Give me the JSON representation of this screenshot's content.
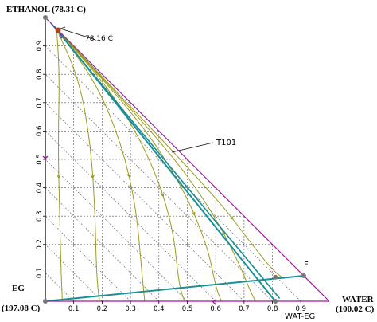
{
  "vertices": {
    "top": {
      "name": "ETHANOL (78.31 C)"
    },
    "left": {
      "name": "EG",
      "temp": "(197.08 C)"
    },
    "right": {
      "name": "WATER",
      "temp": "(100.02 C)"
    }
  },
  "axis_ticks": [
    "0.1",
    "0.2",
    "0.3",
    "0.4",
    "0.5",
    "0.6",
    "0.7",
    "0.8",
    "0.9"
  ],
  "annotations": {
    "azeotrope": "78.16 C",
    "boundary": "T101",
    "feed": "F",
    "binary": "WAT-EG"
  },
  "colors": {
    "frame": "#9a1a9a",
    "grid": "#555555",
    "residue_curve": "#9c9c1c",
    "process_line": "#1a8f96",
    "node": "#777777",
    "azeotrope_node": "#b0421a"
  },
  "chart_data": {
    "type": "ternary",
    "components": [
      "ETHANOL",
      "EG",
      "WATER"
    ],
    "boiling_points_C": {
      "ETHANOL": 78.31,
      "EG": 197.08,
      "WATER": 100.02
    },
    "azeotrope": {
      "label": "78.16 C",
      "water": 0.045,
      "ethanol": 0.955
    },
    "feed_point": {
      "label": "F",
      "water": 0.91,
      "ethanol": 0.09
    },
    "water_eg_product": {
      "label": "WAT-EG",
      "water": 0.81,
      "ethanol": 0.0
    },
    "distillation_boundary": {
      "label": "T101",
      "points": [
        {
          "water": 0.02,
          "ethanol": 0.98
        },
        {
          "water": 0.825,
          "ethanol": 0.01
        }
      ]
    },
    "process_lines": [
      [
        {
          "water": 0.0,
          "ethanol": 0.0
        },
        {
          "water": 0.91,
          "ethanol": 0.09
        }
      ],
      [
        {
          "water": 0.81,
          "ethanol": 0.0
        },
        {
          "water": 0.03,
          "ethanol": 0.97
        }
      ]
    ],
    "residue_curves": [
      [
        {
          "water": 0.04,
          "ethanol": 0.96
        },
        {
          "water": 0.05,
          "ethanol": 0.8
        },
        {
          "water": 0.045,
          "ethanol": 0.55
        },
        {
          "water": 0.05,
          "ethanol": 0.32
        },
        {
          "water": 0.055,
          "ethanol": 0.12
        },
        {
          "water": 0.06,
          "ethanol": 0.0
        }
      ],
      [
        {
          "water": 0.04,
          "ethanol": 0.96
        },
        {
          "water": 0.12,
          "ethanol": 0.78
        },
        {
          "water": 0.16,
          "ethanol": 0.55
        },
        {
          "water": 0.175,
          "ethanol": 0.32
        },
        {
          "water": 0.18,
          "ethanol": 0.1
        },
        {
          "water": 0.19,
          "ethanol": 0.0
        }
      ],
      [
        {
          "water": 0.04,
          "ethanol": 0.96
        },
        {
          "water": 0.18,
          "ethanol": 0.77
        },
        {
          "water": 0.27,
          "ethanol": 0.55
        },
        {
          "water": 0.32,
          "ethanol": 0.33
        },
        {
          "water": 0.34,
          "ethanol": 0.1
        },
        {
          "water": 0.35,
          "ethanol": 0.0
        }
      ],
      [
        {
          "water": 0.04,
          "ethanol": 0.96
        },
        {
          "water": 0.25,
          "ethanol": 0.72
        },
        {
          "water": 0.38,
          "ethanol": 0.48
        },
        {
          "water": 0.45,
          "ethanol": 0.26
        },
        {
          "water": 0.47,
          "ethanol": 0.06
        },
        {
          "water": 0.49,
          "ethanol": 0.0
        }
      ],
      [
        {
          "water": 0.04,
          "ethanol": 0.96
        },
        {
          "water": 0.33,
          "ethanol": 0.64
        },
        {
          "water": 0.48,
          "ethanol": 0.41
        },
        {
          "water": 0.57,
          "ethanol": 0.2
        },
        {
          "water": 0.6,
          "ethanol": 0.05
        },
        {
          "water": 0.62,
          "ethanol": 0.0
        }
      ],
      [
        {
          "water": 0.04,
          "ethanol": 0.96
        },
        {
          "water": 0.42,
          "ethanol": 0.55
        },
        {
          "water": 0.58,
          "ethanol": 0.33
        },
        {
          "water": 0.68,
          "ethanol": 0.14
        },
        {
          "water": 0.72,
          "ethanol": 0.04
        },
        {
          "water": 0.74,
          "ethanol": 0.0
        }
      ],
      [
        {
          "water": 0.04,
          "ethanol": 0.96
        },
        {
          "water": 0.6,
          "ethanol": 0.37
        },
        {
          "water": 0.72,
          "ethanol": 0.21
        },
        {
          "water": 0.8,
          "ethanol": 0.11
        },
        {
          "water": 0.84,
          "ethanol": 0.08
        }
      ]
    ]
  }
}
